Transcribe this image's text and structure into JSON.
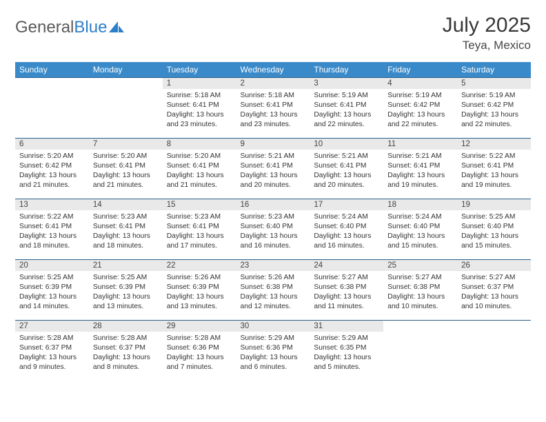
{
  "logo": {
    "general": "General",
    "blue": "Blue"
  },
  "title": "July 2025",
  "location": "Teya, Mexico",
  "colors": {
    "header_bg": "#3a8ac9",
    "header_text": "#ffffff",
    "daynum_bg": "#e9e9e9",
    "row_border": "#2a5f8a",
    "logo_blue": "#2d7fc8",
    "logo_gray": "#5a5a5a"
  },
  "weekdays": [
    "Sunday",
    "Monday",
    "Tuesday",
    "Wednesday",
    "Thursday",
    "Friday",
    "Saturday"
  ],
  "leading_blanks": 2,
  "days": [
    {
      "n": "1",
      "sunrise": "5:18 AM",
      "sunset": "6:41 PM",
      "daylight": "13 hours and 23 minutes."
    },
    {
      "n": "2",
      "sunrise": "5:18 AM",
      "sunset": "6:41 PM",
      "daylight": "13 hours and 23 minutes."
    },
    {
      "n": "3",
      "sunrise": "5:19 AM",
      "sunset": "6:41 PM",
      "daylight": "13 hours and 22 minutes."
    },
    {
      "n": "4",
      "sunrise": "5:19 AM",
      "sunset": "6:42 PM",
      "daylight": "13 hours and 22 minutes."
    },
    {
      "n": "5",
      "sunrise": "5:19 AM",
      "sunset": "6:42 PM",
      "daylight": "13 hours and 22 minutes."
    },
    {
      "n": "6",
      "sunrise": "5:20 AM",
      "sunset": "6:42 PM",
      "daylight": "13 hours and 21 minutes."
    },
    {
      "n": "7",
      "sunrise": "5:20 AM",
      "sunset": "6:41 PM",
      "daylight": "13 hours and 21 minutes."
    },
    {
      "n": "8",
      "sunrise": "5:20 AM",
      "sunset": "6:41 PM",
      "daylight": "13 hours and 21 minutes."
    },
    {
      "n": "9",
      "sunrise": "5:21 AM",
      "sunset": "6:41 PM",
      "daylight": "13 hours and 20 minutes."
    },
    {
      "n": "10",
      "sunrise": "5:21 AM",
      "sunset": "6:41 PM",
      "daylight": "13 hours and 20 minutes."
    },
    {
      "n": "11",
      "sunrise": "5:21 AM",
      "sunset": "6:41 PM",
      "daylight": "13 hours and 19 minutes."
    },
    {
      "n": "12",
      "sunrise": "5:22 AM",
      "sunset": "6:41 PM",
      "daylight": "13 hours and 19 minutes."
    },
    {
      "n": "13",
      "sunrise": "5:22 AM",
      "sunset": "6:41 PM",
      "daylight": "13 hours and 18 minutes."
    },
    {
      "n": "14",
      "sunrise": "5:23 AM",
      "sunset": "6:41 PM",
      "daylight": "13 hours and 18 minutes."
    },
    {
      "n": "15",
      "sunrise": "5:23 AM",
      "sunset": "6:41 PM",
      "daylight": "13 hours and 17 minutes."
    },
    {
      "n": "16",
      "sunrise": "5:23 AM",
      "sunset": "6:40 PM",
      "daylight": "13 hours and 16 minutes."
    },
    {
      "n": "17",
      "sunrise": "5:24 AM",
      "sunset": "6:40 PM",
      "daylight": "13 hours and 16 minutes."
    },
    {
      "n": "18",
      "sunrise": "5:24 AM",
      "sunset": "6:40 PM",
      "daylight": "13 hours and 15 minutes."
    },
    {
      "n": "19",
      "sunrise": "5:25 AM",
      "sunset": "6:40 PM",
      "daylight": "13 hours and 15 minutes."
    },
    {
      "n": "20",
      "sunrise": "5:25 AM",
      "sunset": "6:39 PM",
      "daylight": "13 hours and 14 minutes."
    },
    {
      "n": "21",
      "sunrise": "5:25 AM",
      "sunset": "6:39 PM",
      "daylight": "13 hours and 13 minutes."
    },
    {
      "n": "22",
      "sunrise": "5:26 AM",
      "sunset": "6:39 PM",
      "daylight": "13 hours and 13 minutes."
    },
    {
      "n": "23",
      "sunrise": "5:26 AM",
      "sunset": "6:38 PM",
      "daylight": "13 hours and 12 minutes."
    },
    {
      "n": "24",
      "sunrise": "5:27 AM",
      "sunset": "6:38 PM",
      "daylight": "13 hours and 11 minutes."
    },
    {
      "n": "25",
      "sunrise": "5:27 AM",
      "sunset": "6:38 PM",
      "daylight": "13 hours and 10 minutes."
    },
    {
      "n": "26",
      "sunrise": "5:27 AM",
      "sunset": "6:37 PM",
      "daylight": "13 hours and 10 minutes."
    },
    {
      "n": "27",
      "sunrise": "5:28 AM",
      "sunset": "6:37 PM",
      "daylight": "13 hours and 9 minutes."
    },
    {
      "n": "28",
      "sunrise": "5:28 AM",
      "sunset": "6:37 PM",
      "daylight": "13 hours and 8 minutes."
    },
    {
      "n": "29",
      "sunrise": "5:28 AM",
      "sunset": "6:36 PM",
      "daylight": "13 hours and 7 minutes."
    },
    {
      "n": "30",
      "sunrise": "5:29 AM",
      "sunset": "6:36 PM",
      "daylight": "13 hours and 6 minutes."
    },
    {
      "n": "31",
      "sunrise": "5:29 AM",
      "sunset": "6:35 PM",
      "daylight": "13 hours and 5 minutes."
    }
  ],
  "labels": {
    "sunrise": "Sunrise:",
    "sunset": "Sunset:",
    "daylight": "Daylight:"
  }
}
